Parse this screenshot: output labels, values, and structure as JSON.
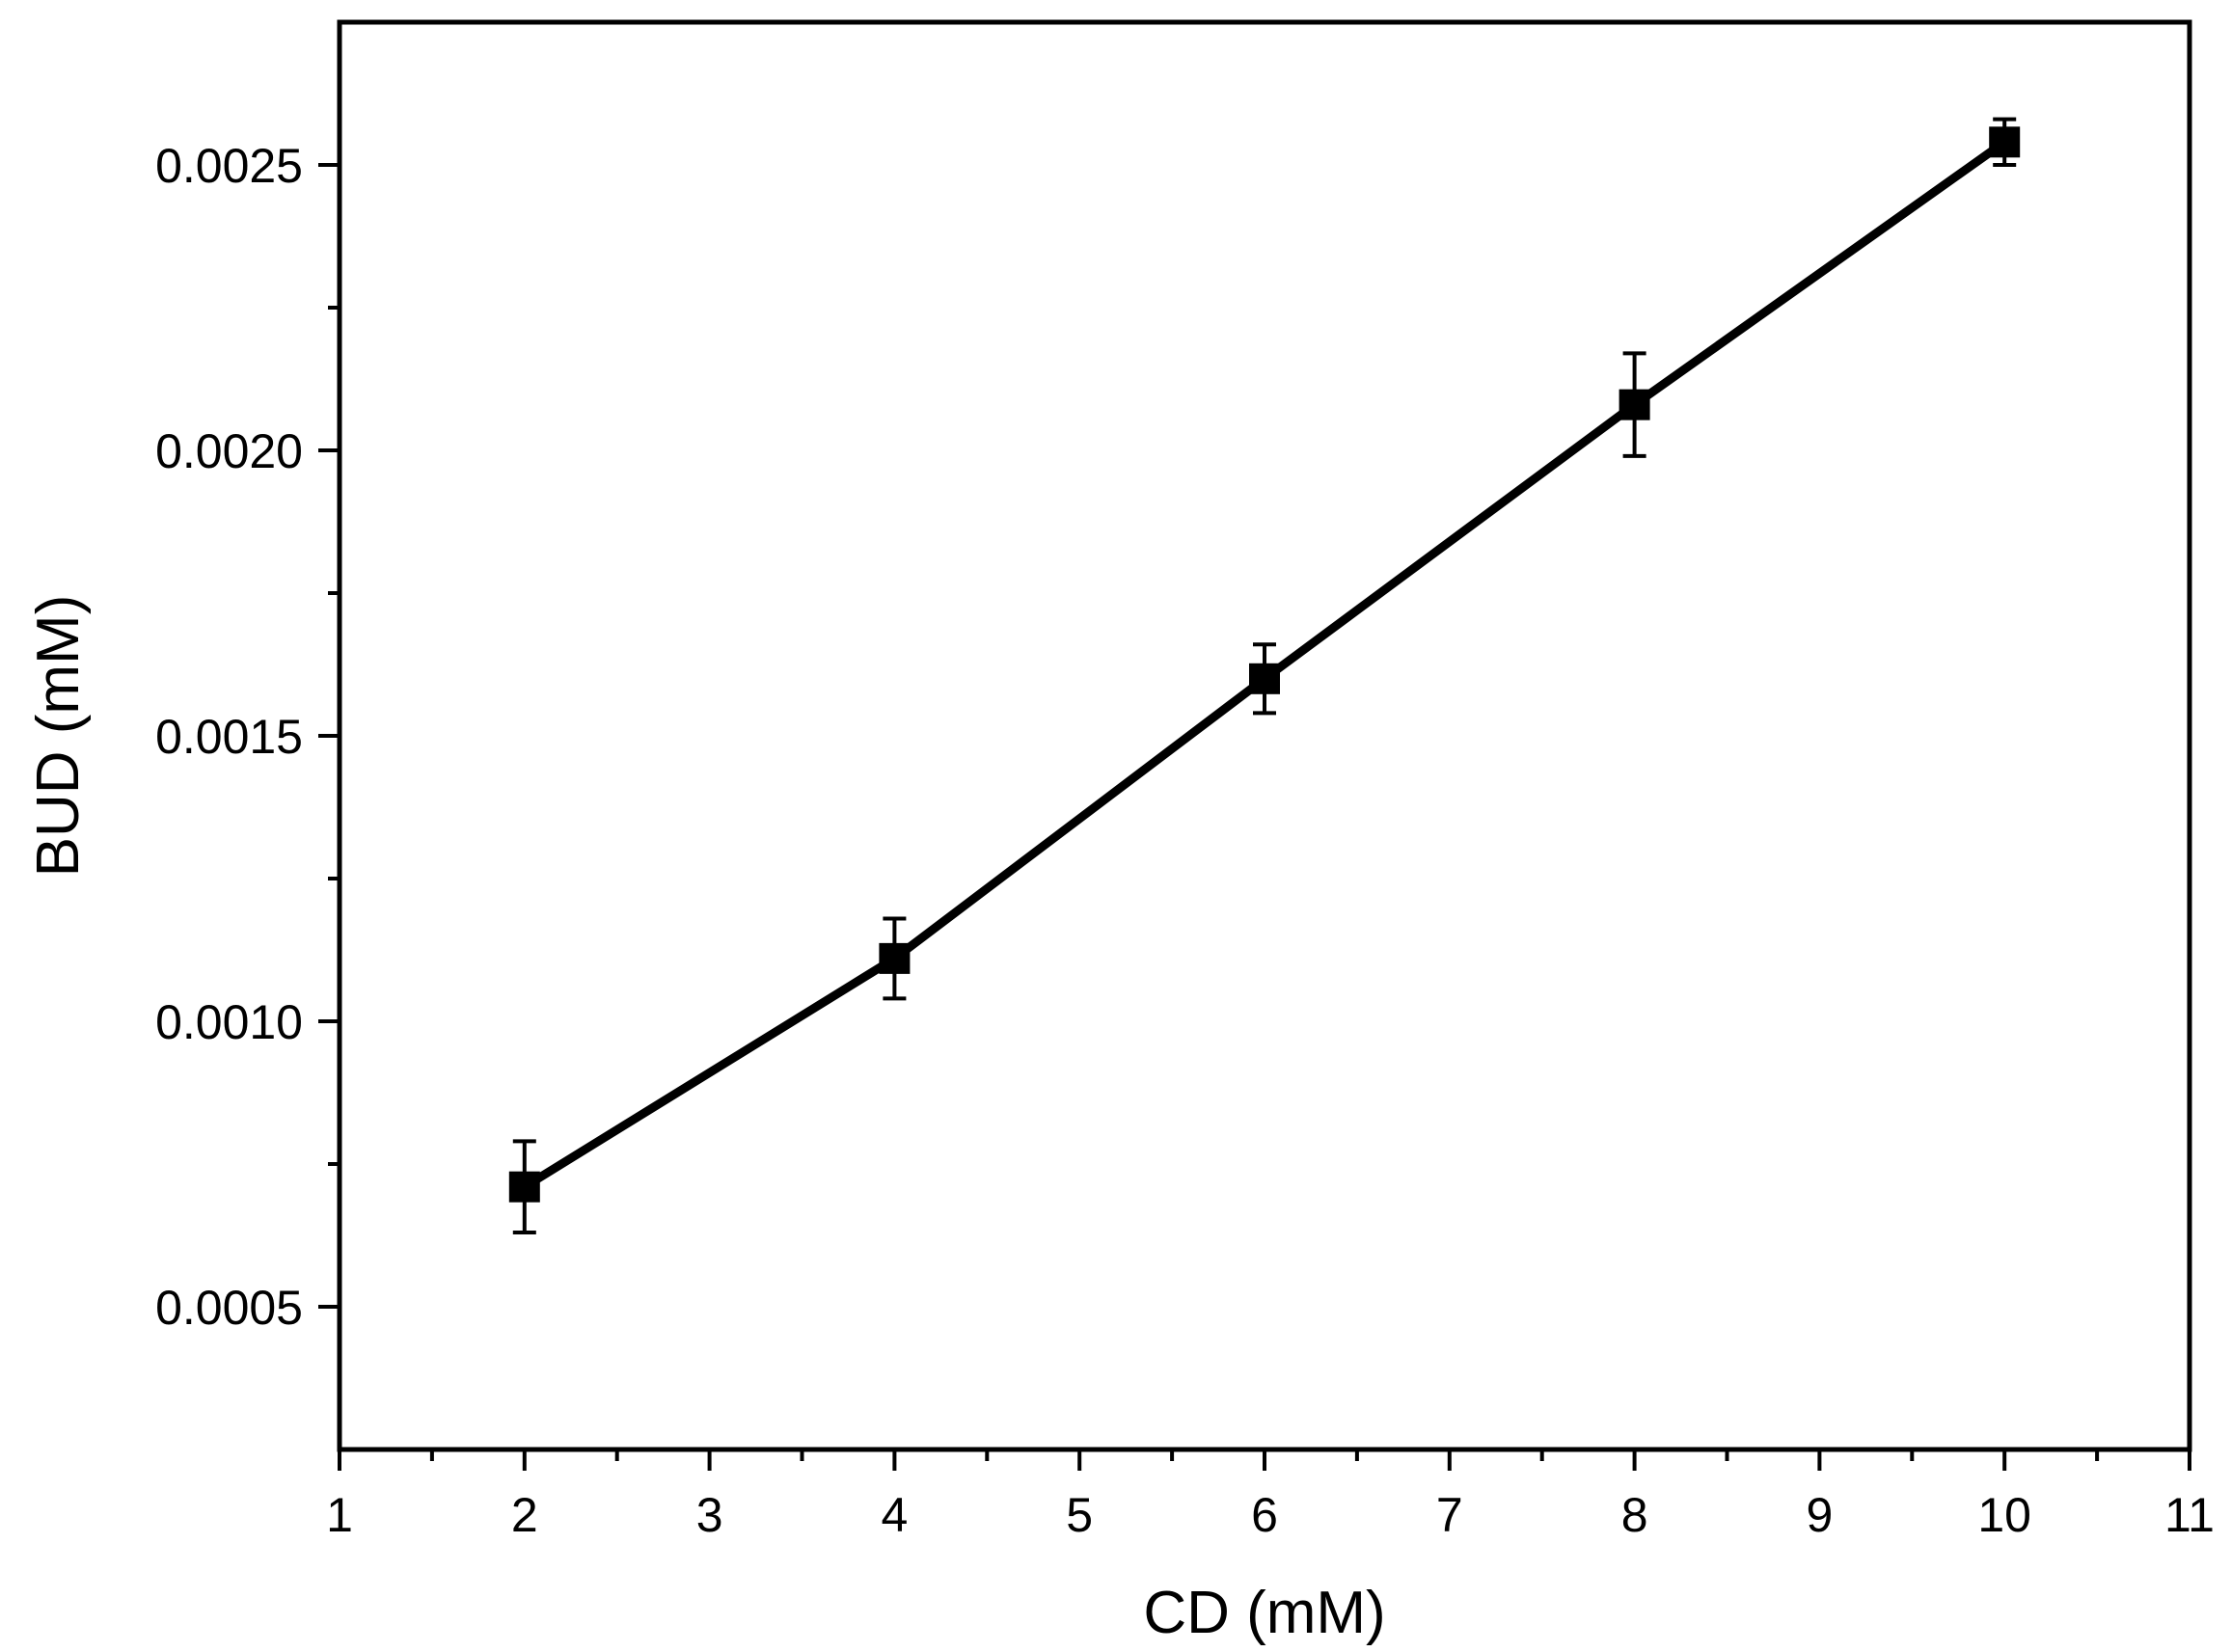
{
  "chart_data": {
    "type": "line",
    "xlabel": "CD (mM)",
    "ylabel": "BUD (mM)",
    "xlim": [
      1,
      11
    ],
    "ylim": [
      0.00025,
      0.00275
    ],
    "x_ticks": [
      {
        "value": 1,
        "label": "1"
      },
      {
        "value": 2,
        "label": "2"
      },
      {
        "value": 3,
        "label": "3"
      },
      {
        "value": 4,
        "label": "4"
      },
      {
        "value": 5,
        "label": "5"
      },
      {
        "value": 6,
        "label": "6"
      },
      {
        "value": 7,
        "label": "7"
      },
      {
        "value": 8,
        "label": "8"
      },
      {
        "value": 9,
        "label": "9"
      },
      {
        "value": 10,
        "label": "10"
      },
      {
        "value": 11,
        "label": "11"
      }
    ],
    "x_minor_ticks": [
      1.5,
      2.5,
      3.5,
      4.5,
      5.5,
      6.5,
      7.5,
      8.5,
      9.5,
      10.5
    ],
    "y_ticks": [
      {
        "value": 0.0005,
        "label": "0.0005"
      },
      {
        "value": 0.001,
        "label": "0.0010"
      },
      {
        "value": 0.0015,
        "label": "0.0015"
      },
      {
        "value": 0.002,
        "label": "0.0020"
      },
      {
        "value": 0.0025,
        "label": "0.0025"
      }
    ],
    "y_minor_ticks": [
      0.00075,
      0.00125,
      0.00175,
      0.00225
    ],
    "grid": false,
    "marker": "square",
    "line_color": "#000000",
    "series": [
      {
        "x": [
          2,
          4,
          6,
          8,
          10
        ],
        "y": [
          0.00071,
          0.00111,
          0.0016,
          0.00208,
          0.00254
        ],
        "error": [
          8e-05,
          7e-05,
          6e-05,
          9e-05,
          4e-05
        ]
      }
    ]
  }
}
